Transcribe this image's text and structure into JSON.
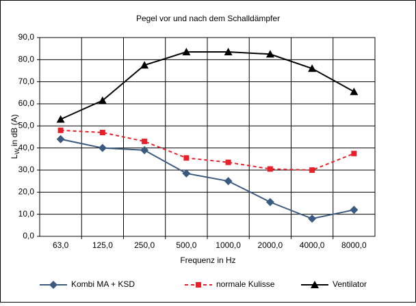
{
  "chart_data": {
    "type": "line",
    "title": "Pegel vor und nach dem Schalldämpfer",
    "x_label": "Frequenz in Hz",
    "y_label": [
      "L",
      "W",
      " in dB (A)"
    ],
    "categories": [
      "63,0",
      "125,0",
      "250,0",
      "500,0",
      "1000,0",
      "2000,0",
      "4000,0",
      "8000,0"
    ],
    "series": [
      {
        "name": "Kombi MA + KSD",
        "color": "#3a5a80",
        "marker": "diamond",
        "dash": "solid",
        "values": [
          44,
          40,
          39,
          28.5,
          25,
          15.5,
          8,
          12
        ]
      },
      {
        "name": "normale Kulisse",
        "color": "#e8202a",
        "marker": "square",
        "dash": "dashed",
        "values": [
          48,
          47,
          43,
          35.5,
          33.5,
          30.5,
          30,
          37.5
        ]
      },
      {
        "name": "Ventilator",
        "color": "#000000",
        "marker": "triangle",
        "dash": "solid",
        "values": [
          53,
          61.5,
          77.5,
          83.5,
          83.5,
          82.5,
          76,
          65.5
        ]
      }
    ],
    "ylim": [
      0,
      90
    ],
    "yticks": [
      {
        "value": 0,
        "label": "0,0"
      },
      {
        "value": 10,
        "label": "10,0"
      },
      {
        "value": 20,
        "label": "20,0"
      },
      {
        "value": 30,
        "label": "30,0"
      },
      {
        "value": 40,
        "label": "40,0"
      },
      {
        "value": 50,
        "label": "50,0"
      },
      {
        "value": 60,
        "label": "60,0"
      },
      {
        "value": 70,
        "label": "70,0"
      },
      {
        "value": 80,
        "label": "80,0"
      },
      {
        "value": 90,
        "label": "90,0"
      }
    ],
    "grid": true,
    "legend": "bottom"
  }
}
